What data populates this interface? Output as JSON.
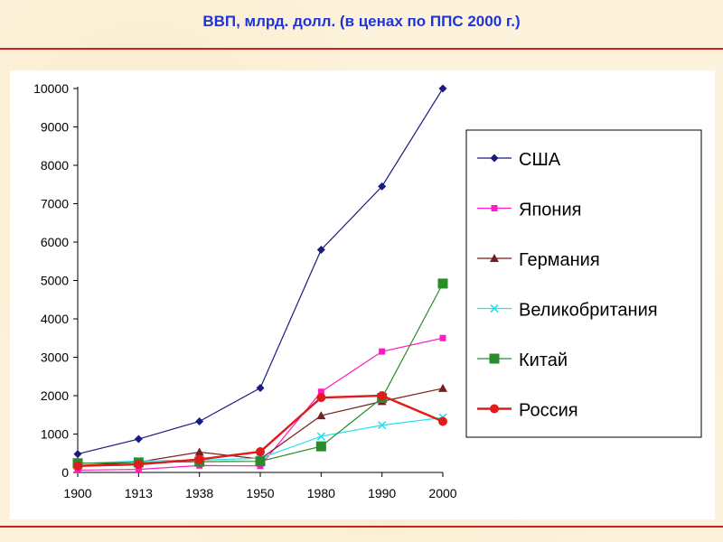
{
  "title": "ВВП, млрд. долл. (в ценах по ППС 2000 г.)",
  "chart_data": {
    "type": "line",
    "title": "ВВП, млрд. долл. (в ценах по ППС 2000 г.)",
    "xlabel": "",
    "ylabel": "",
    "categories": [
      "1900",
      "1913",
      "1938",
      "1950",
      "1980",
      "1990",
      "2000"
    ],
    "ylim": [
      0,
      10000
    ],
    "yticks": [
      "0",
      "1000",
      "2000",
      "3000",
      "4000",
      "5000",
      "6000",
      "7000",
      "8000",
      "9000",
      "10000"
    ],
    "grid": false,
    "legend_position": "right",
    "series": [
      {
        "name": "США",
        "color": "#1a1a80",
        "marker": "diamond",
        "values": [
          480,
          870,
          1330,
          2200,
          5800,
          7450,
          10000
        ]
      },
      {
        "name": "Япония",
        "color": "#ff1ac6",
        "marker": "square",
        "values": [
          60,
          80,
          180,
          170,
          2100,
          3150,
          3500
        ]
      },
      {
        "name": "Германия",
        "color": "#7a1f1f",
        "marker": "triangle",
        "values": [
          180,
          270,
          530,
          350,
          1480,
          1850,
          2190
        ]
      },
      {
        "name": "Великобритания",
        "color": "#26e0f0",
        "marker": "x",
        "values": [
          230,
          300,
          320,
          370,
          940,
          1230,
          1430
        ]
      },
      {
        "name": "Китай",
        "color": "#2b8a2b",
        "marker": "square",
        "values": [
          240,
          260,
          280,
          290,
          680,
          1940,
          4920
        ]
      },
      {
        "name": "Россия",
        "color": "#e01b1b",
        "marker": "circle",
        "values": [
          170,
          210,
          340,
          540,
          1950,
          2000,
          1330
        ]
      }
    ]
  }
}
